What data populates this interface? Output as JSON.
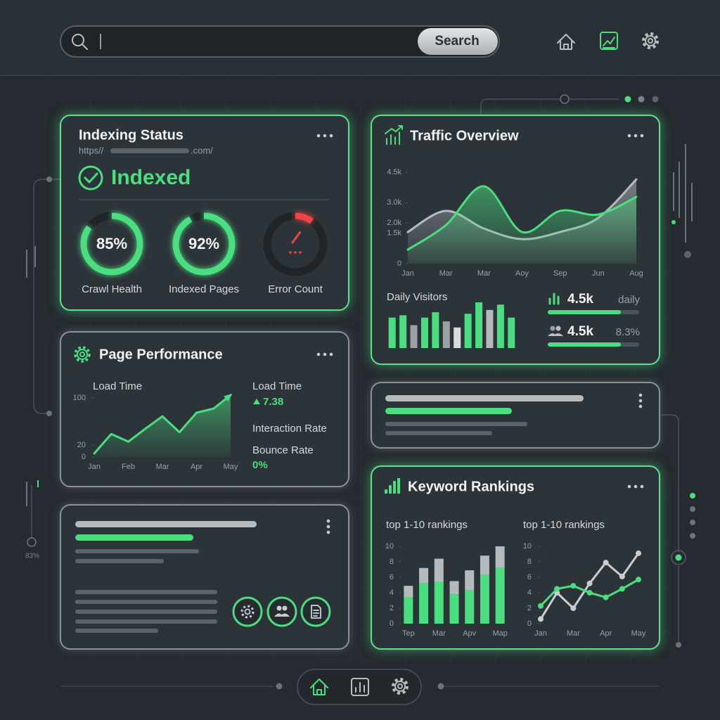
{
  "search_button": "Search",
  "indexing": {
    "title": "Indexing Status",
    "url_prefix": "https//",
    "url_suffix": ".com/",
    "status": "Indexed",
    "gauges": [
      {
        "label": "Crawl Health",
        "value": 85,
        "value_label": "85%",
        "color": "#4ade80"
      },
      {
        "label": "Indexed Pages",
        "value": 92,
        "value_label": "92%",
        "color": "#4ade80"
      },
      {
        "label": "Error Count",
        "value": 10,
        "color": "#ef4444"
      }
    ]
  },
  "traffic": {
    "title": "Traffic Overview",
    "chart_data": {
      "type": "area",
      "smooth": true,
      "categories": [
        "Jan",
        "Mar",
        "Mar",
        "Aoy",
        "Sep",
        "Jun",
        "Aug"
      ],
      "ylim": [
        0,
        4500
      ],
      "yticks": [
        0,
        {
          "value": 1500,
          "label": "1.5k"
        },
        {
          "value": 2000,
          "label": "2.0k"
        },
        {
          "value": 3000,
          "label": "3.0k"
        },
        {
          "value": 4500,
          "label": "4.5k"
        }
      ],
      "series": [
        {
          "color": "#b5babe",
          "values": [
            1560,
            2600,
            1730,
            1210,
            1560,
            2250,
            4150
          ]
        },
        {
          "color": "#4ade80",
          "values": [
            690,
            1900,
            3810,
            1560,
            2600,
            2420,
            3290
          ]
        }
      ]
    },
    "daily_visitors": {
      "title": "Daily Visitors",
      "chart_data": {
        "type": "bar",
        "values": [
          40,
          43,
          30,
          40,
          47,
          35,
          27,
          45,
          60,
          50,
          57,
          40
        ],
        "colors": [
          "#4ade80",
          "#4ade80",
          "#9aa0a6",
          "#4ade80",
          "#4ade80",
          "#9aa0a6",
          "#d9dcde",
          "#4ade80",
          "#4ade80",
          "#b5babe",
          "#4ade80",
          "#4ade80"
        ]
      }
    },
    "stats": [
      {
        "value": "4.5k",
        "note": "daily",
        "progress": 80
      },
      {
        "value": "4.5k",
        "note": "8.3%",
        "progress": 80
      }
    ]
  },
  "performance": {
    "title": "Page Performance",
    "chart_data": {
      "type": "area",
      "title": "Load Time",
      "arrow": true,
      "categories": [
        "Jan",
        null,
        "Feb",
        null,
        "Mar",
        null,
        "Apr",
        null,
        "May"
      ],
      "ylim": [
        0,
        100
      ],
      "yticks": [
        0,
        20,
        100
      ],
      "series": [
        {
          "color": "#4ade80",
          "values": [
            6,
            39,
            26,
            48,
            69,
            42,
            75,
            82,
            105
          ]
        }
      ]
    },
    "metrics": [
      {
        "label": "Load Time",
        "value": "7.38"
      },
      {
        "label": "Interaction Rate"
      },
      {
        "label": "Bounce Rate",
        "value": "0%"
      }
    ]
  },
  "keywords": {
    "title": "Keyword Rankings",
    "charts": [
      {
        "type": "bar",
        "stacked": true,
        "title": "top 1-10 rankings",
        "categories": [
          "Tep",
          null,
          "Mar",
          null,
          "Apv",
          null,
          "Map"
        ],
        "ylim": [
          0,
          10
        ],
        "yticks": [
          0,
          2,
          4,
          6,
          8,
          10
        ],
        "series": [
          {
            "color": "#4ade80",
            "values": [
              3.4,
              5.2,
              5.4,
              3.8,
              4.3,
              6.3,
              7.2
            ]
          },
          {
            "color": "#b5babe",
            "values": [
              1.5,
              2.0,
              3.0,
              1.7,
              2.6,
              2.5,
              2.8
            ]
          }
        ]
      },
      {
        "type": "line",
        "title": "top 1-10 rankings",
        "markers": true,
        "categories": [
          "Jan",
          null,
          "Mar",
          null,
          "Apr",
          null,
          "May"
        ],
        "ylim": [
          0,
          10
        ],
        "yticks": [
          0,
          2,
          4,
          6,
          8,
          10
        ],
        "series": [
          {
            "color": "#c9cdd0",
            "values": [
              0.6,
              4,
              2,
              5.2,
              7.9,
              6.1,
              9.1
            ]
          },
          {
            "color": "#4ade80",
            "values": [
              2.3,
              4.5,
              4.9,
              4,
              3.4,
              4.5,
              5.7
            ]
          }
        ]
      }
    ]
  },
  "side_label": "83%"
}
